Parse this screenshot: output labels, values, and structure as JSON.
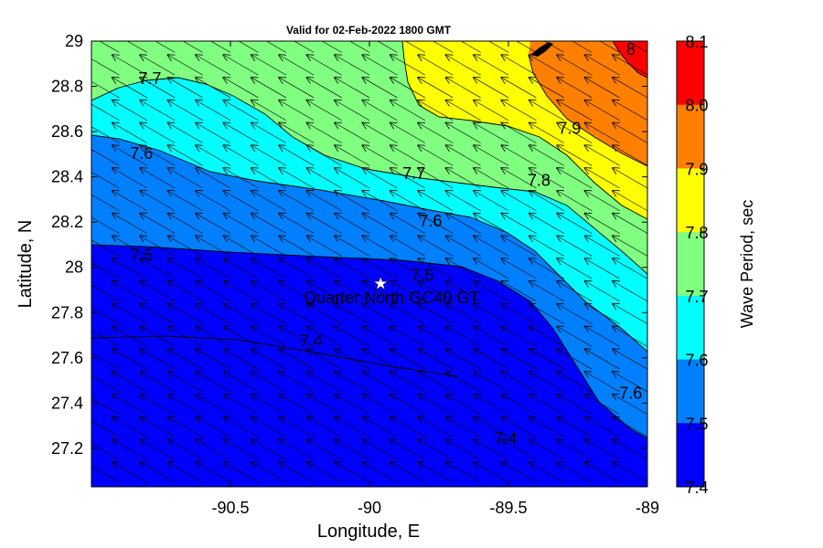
{
  "title": "Valid for 02-Feb-2022 1800 GMT",
  "xlabel": "Longitude, E",
  "ylabel": "Latitude, N",
  "x_ticks": [
    "-90.5",
    "-90",
    "-89.5",
    "-89"
  ],
  "y_ticks": [
    "29",
    "28.8",
    "28.6",
    "28.4",
    "28.2",
    "28",
    "27.8",
    "27.6",
    "27.4",
    "27.2"
  ],
  "colorbar": {
    "label": "Wave Period, sec",
    "ticks": [
      "8.1",
      "8.0",
      "7.9",
      "7.8",
      "7.7",
      "7.6",
      "7.5",
      "7.4"
    ],
    "colors": [
      "#ff0000",
      "#ff8000",
      "#ffff00",
      "#80ff80",
      "#00ffff",
      "#0080ff",
      "#0000ff"
    ]
  },
  "station": {
    "label": "Quarter North GC40 GT",
    "lon": -89.96,
    "lat": 27.93,
    "marker": "star-icon"
  },
  "contour_labels": [
    {
      "text": "7.7",
      "lon": -90.79,
      "lat": 28.81
    },
    {
      "text": "7.6",
      "lon": -90.82,
      "lat": 28.48
    },
    {
      "text": "7.5",
      "lon": -90.82,
      "lat": 28.03
    },
    {
      "text": "7.4",
      "lon": -90.21,
      "lat": 27.65
    },
    {
      "text": "7.7",
      "lon": -89.84,
      "lat": 28.39
    },
    {
      "text": "7.6",
      "lon": -89.78,
      "lat": 28.18
    },
    {
      "text": "7.5",
      "lon": -89.81,
      "lat": 27.94
    },
    {
      "text": "7.8",
      "lon": -89.39,
      "lat": 28.36
    },
    {
      "text": "7.9",
      "lon": -89.28,
      "lat": 28.59
    },
    {
      "text": "8",
      "lon": -89.06,
      "lat": 28.94
    },
    {
      "text": "7.6",
      "lon": -89.06,
      "lat": 27.42
    },
    {
      "text": "7.4",
      "lon": -89.51,
      "lat": 27.22
    }
  ],
  "chart_data": {
    "type": "heatmap",
    "xlim": [
      -91,
      -89
    ],
    "ylim": [
      27.03,
      29
    ],
    "color_levels": [
      7.4,
      7.5,
      7.6,
      7.7,
      7.8,
      7.9,
      8.0,
      8.1
    ],
    "vectors": {
      "direction": "toward northwest",
      "spacing_deg": 0.1
    }
  }
}
